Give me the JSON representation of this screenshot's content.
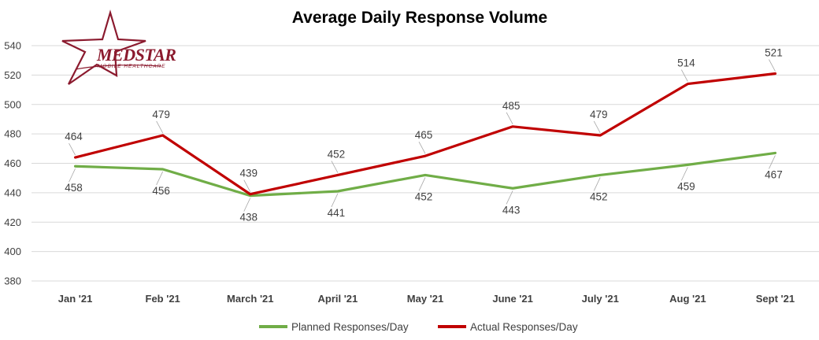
{
  "chart_data": {
    "type": "line",
    "title": "Average Daily Response Volume",
    "categories": [
      "Jan '21",
      "Feb '21",
      "March '21",
      "April '21",
      "May '21",
      "June '21",
      "July '21",
      "Aug '21",
      "Sept '21"
    ],
    "series": [
      {
        "name": "Planned Responses/Day",
        "color": "#70ad47",
        "values": [
          458,
          456,
          438,
          441,
          452,
          443,
          452,
          459,
          467
        ]
      },
      {
        "name": "Actual Responses/Day",
        "color": "#c00000",
        "values": [
          464,
          479,
          439,
          452,
          465,
          485,
          479,
          514,
          521
        ]
      }
    ],
    "ylim": [
      380,
      540
    ],
    "yticks": [
      380,
      400,
      420,
      440,
      460,
      480,
      500,
      520,
      540
    ],
    "grid": true,
    "legend_position": "bottom"
  },
  "logo": {
    "text": "MEDSTAR",
    "subtext": "MOBILE HEALTHCARE",
    "color": "#8b1a2e"
  }
}
